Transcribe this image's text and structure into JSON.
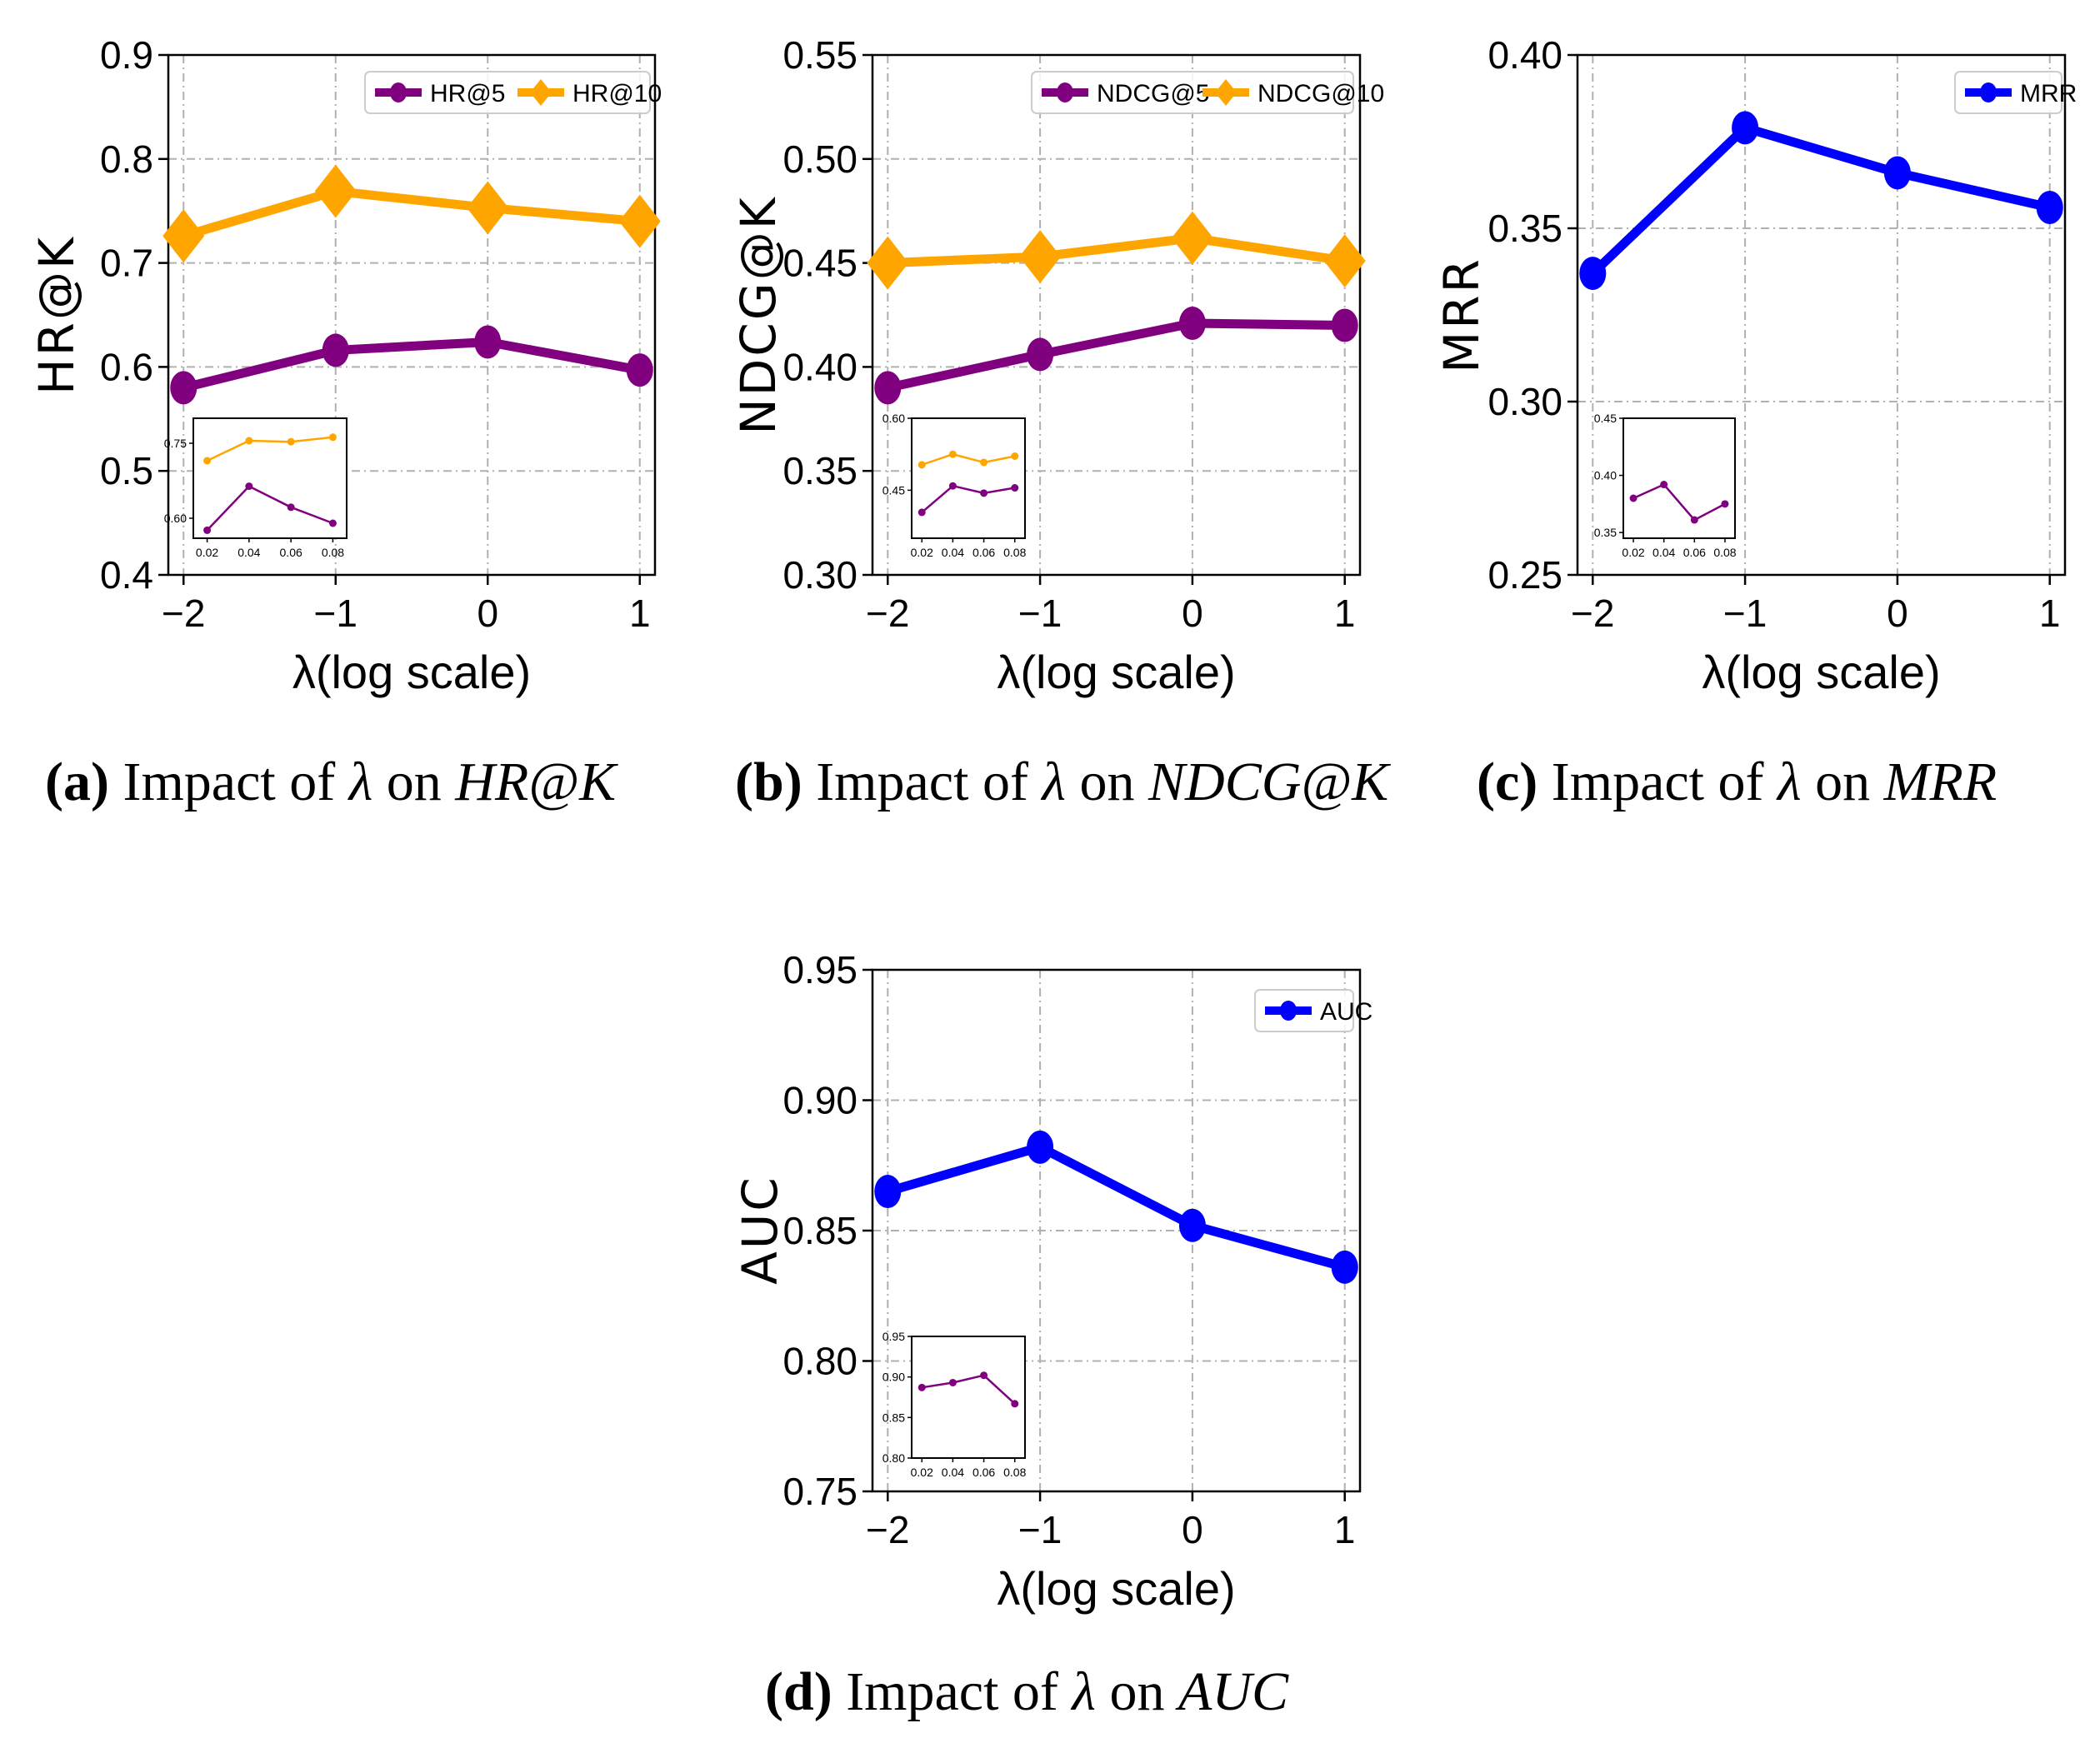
{
  "chart_data": [
    {
      "id": "a",
      "type": "line",
      "caption": {
        "letter": "a",
        "text": "Impact of λ on HR@K",
        "parts": [
          "Impact of",
          "λ",
          "on",
          "HR@K"
        ]
      },
      "xlabel": "λ(log scale)",
      "ylabel": "HR@K",
      "x": [
        -2,
        -1,
        0,
        1
      ],
      "xticks": [
        "−2",
        "−1",
        "0",
        "1"
      ],
      "xlim": [
        -2.1,
        1.1
      ],
      "ylim": [
        0.4,
        0.9
      ],
      "yticks": [
        "0.4",
        "0.5",
        "0.6",
        "0.7",
        "0.8",
        "0.9"
      ],
      "grid": true,
      "legend_position": "top-right",
      "series": [
        {
          "name": "HR@5",
          "color": "#800080",
          "marker": "circle",
          "values": [
            0.58,
            0.616,
            0.624,
            0.597
          ]
        },
        {
          "name": "HR@10",
          "color": "#FFA500",
          "marker": "diamond",
          "values": [
            0.726,
            0.769,
            0.753,
            0.74
          ]
        }
      ],
      "inset": {
        "x": [
          0.02,
          0.04,
          0.06,
          0.08
        ],
        "xticks": [
          "0.02",
          "0.04",
          "0.06",
          "0.08"
        ],
        "ylim": [
          0.56,
          0.8
        ],
        "yticks": [
          "0.60",
          "0.75"
        ],
        "series": [
          {
            "name": "HR@5",
            "color": "#800080",
            "values": [
              0.576,
              0.664,
              0.622,
              0.59
            ]
          },
          {
            "name": "HR@10",
            "color": "#FFA500",
            "values": [
              0.715,
              0.755,
              0.753,
              0.762
            ]
          }
        ]
      }
    },
    {
      "id": "b",
      "type": "line",
      "caption": {
        "letter": "b",
        "text": "Impact of λ on NDCG@K",
        "parts": [
          "Impact",
          "of",
          "λ",
          "on",
          "NDCG@K"
        ]
      },
      "xlabel": "λ(log scale)",
      "ylabel": "NDCG@K",
      "x": [
        -2,
        -1,
        0,
        1
      ],
      "xticks": [
        "−2",
        "−1",
        "0",
        "1"
      ],
      "xlim": [
        -2.1,
        1.1
      ],
      "ylim": [
        0.3,
        0.55
      ],
      "yticks": [
        "0.30",
        "0.35",
        "0.40",
        "0.45",
        "0.50",
        "0.55"
      ],
      "grid": true,
      "legend_position": "top-right",
      "series": [
        {
          "name": "NDCG@5",
          "color": "#800080",
          "marker": "circle",
          "values": [
            0.39,
            0.406,
            0.421,
            0.42
          ]
        },
        {
          "name": "NDCG@10",
          "color": "#FFA500",
          "marker": "diamond",
          "values": [
            0.45,
            0.453,
            0.462,
            0.451
          ]
        }
      ],
      "inset": {
        "x": [
          0.02,
          0.04,
          0.06,
          0.08
        ],
        "xticks": [
          "0.02",
          "0.04",
          "0.06",
          "0.08"
        ],
        "ylim": [
          0.35,
          0.6
        ],
        "yticks": [
          "0.45",
          "0.60"
        ],
        "series": [
          {
            "name": "NDCG@5",
            "color": "#800080",
            "values": [
              0.404,
              0.459,
              0.444,
              0.455
            ]
          },
          {
            "name": "NDCG@10",
            "color": "#FFA500",
            "values": [
              0.503,
              0.525,
              0.508,
              0.521
            ]
          }
        ]
      }
    },
    {
      "id": "c",
      "type": "line",
      "caption": {
        "letter": "c",
        "text": "Impact of λ on MRR",
        "parts": [
          "Impact of",
          "λ",
          "on",
          "MRR"
        ]
      },
      "xlabel": "λ(log scale)",
      "ylabel": "MRR",
      "x": [
        -2,
        -1,
        0,
        1
      ],
      "xticks": [
        "−2",
        "−1",
        "0",
        "1"
      ],
      "xlim": [
        -2.1,
        1.1
      ],
      "ylim": [
        0.25,
        0.4
      ],
      "yticks": [
        "0.25",
        "0.30",
        "0.35",
        "0.40"
      ],
      "grid": true,
      "legend_position": "top-right",
      "series": [
        {
          "name": "MRR",
          "color": "#0000FF",
          "marker": "circle",
          "values": [
            0.337,
            0.379,
            0.366,
            0.356
          ]
        }
      ],
      "inset": {
        "x": [
          0.02,
          0.04,
          0.06,
          0.08
        ],
        "xticks": [
          "0.02",
          "0.04",
          "0.06",
          "0.08"
        ],
        "ylim": [
          0.345,
          0.45
        ],
        "yticks": [
          "0.35",
          "0.40",
          "0.45"
        ],
        "series": [
          {
            "name": "MRR",
            "color": "#800080",
            "values": [
              0.38,
              0.392,
              0.361,
              0.375
            ]
          }
        ]
      }
    },
    {
      "id": "d",
      "type": "line",
      "caption": {
        "letter": "d",
        "text": "Impact of λ on AUC",
        "parts": [
          "Impact of",
          "λ",
          "on",
          "AUC"
        ]
      },
      "xlabel": "λ(log scale)",
      "ylabel": "AUC",
      "x": [
        -2,
        -1,
        0,
        1
      ],
      "xticks": [
        "−2",
        "−1",
        "0",
        "1"
      ],
      "xlim": [
        -2.1,
        1.1
      ],
      "ylim": [
        0.75,
        0.95
      ],
      "yticks": [
        "0.75",
        "0.80",
        "0.85",
        "0.90",
        "0.95"
      ],
      "grid": true,
      "legend_position": "top-right",
      "series": [
        {
          "name": "AUC",
          "color": "#0000FF",
          "marker": "circle",
          "values": [
            0.865,
            0.882,
            0.852,
            0.836
          ]
        }
      ],
      "inset": {
        "x": [
          0.02,
          0.04,
          0.06,
          0.08
        ],
        "xticks": [
          "0.02",
          "0.04",
          "0.06",
          "0.08"
        ],
        "ylim": [
          0.8,
          0.95
        ],
        "yticks": [
          "0.80",
          "0.85",
          "0.90",
          "0.95"
        ],
        "series": [
          {
            "name": "AUC",
            "color": "#800080",
            "values": [
              0.887,
              0.893,
              0.902,
              0.867
            ]
          }
        ]
      }
    }
  ]
}
